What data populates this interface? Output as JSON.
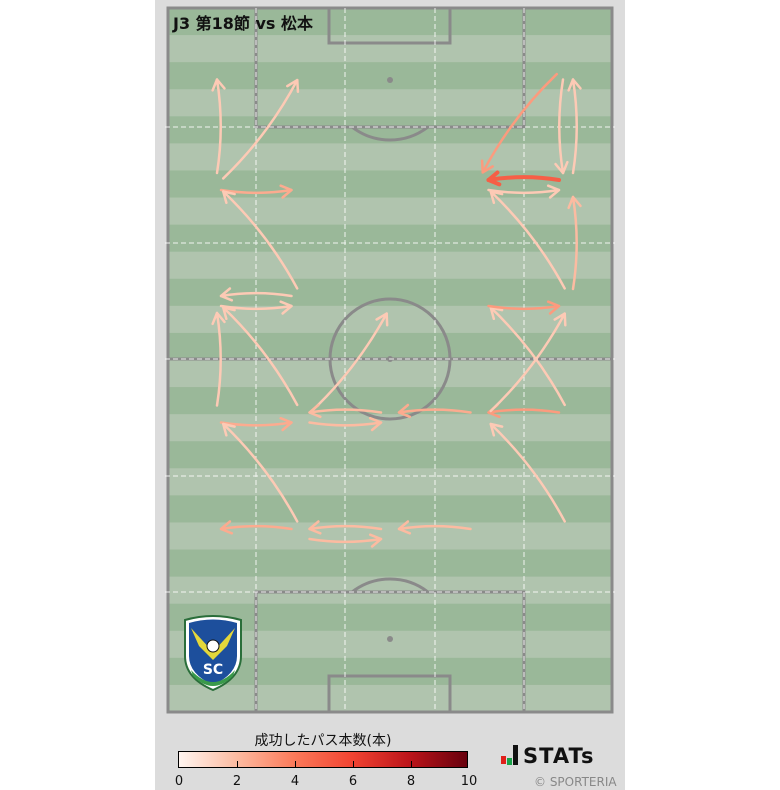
{
  "title": "J3 第18節 vs 松本",
  "legend": {
    "title": "成功したパス本数(本)",
    "ticks": [
      "0",
      "2",
      "4",
      "6",
      "8",
      "10"
    ],
    "range": [
      0,
      10
    ],
    "colormap": [
      "#fff5f0",
      "#fcbba1",
      "#fb7a5a",
      "#f14432",
      "#bc141a",
      "#67000d"
    ]
  },
  "branding": {
    "stats": "STATs",
    "copyright": "© SPORTERIA"
  },
  "colors": {
    "pitch_dark": "#9ab899",
    "pitch_light": "#b0c4ae",
    "lines": "#8a8a8a",
    "background": "#dcdcdc"
  },
  "club_logo": {
    "text": "TSC",
    "name": "TOCHIGI SOCCER CLUB"
  },
  "zones": {
    "columns": 5,
    "rows": 6
  },
  "passes": [
    {
      "from": [
        0,
        1
      ],
      "to": [
        0,
        0
      ],
      "count": 1.5
    },
    {
      "from": [
        0,
        1
      ],
      "to": [
        1,
        0
      ],
      "count": 1.5
    },
    {
      "from": [
        0,
        1
      ],
      "to": [
        1,
        1
      ],
      "count": 2.5
    },
    {
      "from": [
        1,
        2
      ],
      "to": [
        0,
        1
      ],
      "count": 1.5
    },
    {
      "from": [
        1,
        2
      ],
      "to": [
        0,
        2
      ],
      "count": 1.5
    },
    {
      "from": [
        0,
        2
      ],
      "to": [
        1,
        2
      ],
      "count": 1.5
    },
    {
      "from": [
        0,
        3
      ],
      "to": [
        0,
        2
      ],
      "count": 1.5
    },
    {
      "from": [
        1,
        3
      ],
      "to": [
        0,
        2
      ],
      "count": 1.5
    },
    {
      "from": [
        1,
        3
      ],
      "to": [
        2,
        2
      ],
      "count": 1.5
    },
    {
      "from": [
        0,
        3
      ],
      "to": [
        1,
        3
      ],
      "count": 2.5
    },
    {
      "from": [
        1,
        3
      ],
      "to": [
        2,
        3
      ],
      "count": 2
    },
    {
      "from": [
        2,
        3
      ],
      "to": [
        1,
        3
      ],
      "count": 2
    },
    {
      "from": [
        3,
        3
      ],
      "to": [
        2,
        3
      ],
      "count": 2.5
    },
    {
      "from": [
        4,
        3
      ],
      "to": [
        3,
        3
      ],
      "count": 3
    },
    {
      "from": [
        3,
        3
      ],
      "to": [
        4,
        2
      ],
      "count": 1.5
    },
    {
      "from": [
        4,
        3
      ],
      "to": [
        3,
        2
      ],
      "count": 1.5
    },
    {
      "from": [
        3,
        2
      ],
      "to": [
        4,
        2
      ],
      "count": 3
    },
    {
      "from": [
        4,
        2
      ],
      "to": [
        4,
        1
      ],
      "count": 2
    },
    {
      "from": [
        4,
        2
      ],
      "to": [
        3,
        1
      ],
      "count": 1.5
    },
    {
      "from": [
        4,
        1
      ],
      "to": [
        3,
        1
      ],
      "count": 5
    },
    {
      "from": [
        3,
        1
      ],
      "to": [
        4,
        1
      ],
      "count": 1.5
    },
    {
      "from": [
        4,
        0
      ],
      "to": [
        3,
        1
      ],
      "count": 3
    },
    {
      "from": [
        4,
        1
      ],
      "to": [
        4,
        0
      ],
      "count": 1.5
    },
    {
      "from": [
        4,
        0
      ],
      "to": [
        4,
        1
      ],
      "count": 1.5
    },
    {
      "from": [
        1,
        4
      ],
      "to": [
        0,
        3
      ],
      "count": 1.5
    },
    {
      "from": [
        4,
        4
      ],
      "to": [
        3,
        3
      ],
      "count": 1.5
    },
    {
      "from": [
        1,
        4
      ],
      "to": [
        0,
        4
      ],
      "count": 2.5
    },
    {
      "from": [
        1,
        4
      ],
      "to": [
        2,
        4
      ],
      "count": 2
    },
    {
      "from": [
        2,
        4
      ],
      "to": [
        1,
        4
      ],
      "count": 2
    },
    {
      "from": [
        3,
        4
      ],
      "to": [
        2,
        4
      ],
      "count": 2
    }
  ]
}
